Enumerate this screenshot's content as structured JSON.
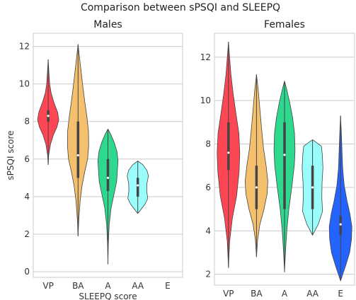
{
  "figure_title": "Comparison between sPSQI and SLEEPQ",
  "chart_data": [
    {
      "type": "violin",
      "title": "Males",
      "xlabel": "SLEEPQ score",
      "ylabel": "sPSQI score",
      "categories": [
        "VP",
        "BA",
        "A",
        "AA",
        "E"
      ],
      "yticks": [
        0,
        2,
        4,
        6,
        8,
        10,
        12
      ],
      "ylim": [
        -0.3,
        12.7
      ],
      "grid": true,
      "colors": [
        "#ff4655",
        "#f5c06d",
        "#2ed98f",
        "#9bfcfc",
        "#2563ff"
      ],
      "violins": [
        {
          "category": "VP",
          "min": 5.7,
          "max": 11.3,
          "q1": 8,
          "median": 8.3,
          "q3": 8.6,
          "profile": [
            [
              5.7,
              0
            ],
            [
              6.2,
              0.05
            ],
            [
              6.8,
              0.22
            ],
            [
              7.3,
              0.5
            ],
            [
              7.7,
              0.82
            ],
            [
              8.1,
              1
            ],
            [
              8.5,
              0.88
            ],
            [
              9,
              0.55
            ],
            [
              9.5,
              0.28
            ],
            [
              10,
              0.14
            ],
            [
              10.6,
              0.07
            ],
            [
              11.3,
              0
            ]
          ]
        },
        {
          "category": "BA",
          "min": 1.9,
          "max": 12.1,
          "q1": 5,
          "median": 6.2,
          "q3": 8,
          "profile": [
            [
              1.9,
              0
            ],
            [
              2.8,
              0.07
            ],
            [
              3.8,
              0.2
            ],
            [
              4.6,
              0.38
            ],
            [
              5.3,
              0.62
            ],
            [
              6,
              0.9
            ],
            [
              6.7,
              1
            ],
            [
              7.5,
              0.98
            ],
            [
              8.3,
              0.82
            ],
            [
              9.1,
              0.62
            ],
            [
              10,
              0.42
            ],
            [
              10.9,
              0.24
            ],
            [
              11.6,
              0.1
            ],
            [
              12.1,
              0
            ]
          ]
        },
        {
          "category": "A",
          "min": 0.4,
          "max": 7.6,
          "q1": 4.3,
          "median": 5,
          "q3": 6,
          "profile": [
            [
              0.4,
              0
            ],
            [
              1.5,
              0.04
            ],
            [
              2.5,
              0.12
            ],
            [
              3.4,
              0.3
            ],
            [
              4.2,
              0.6
            ],
            [
              4.8,
              0.82
            ],
            [
              5.3,
              0.88
            ],
            [
              5.9,
              0.95
            ],
            [
              6.4,
              0.85
            ],
            [
              6.9,
              0.58
            ],
            [
              7.3,
              0.28
            ],
            [
              7.6,
              0
            ]
          ]
        },
        {
          "category": "AA",
          "min": 3.1,
          "max": 5.9,
          "q1": 4,
          "median": 4.6,
          "q3": 5,
          "profile": [
            [
              3.1,
              0
            ],
            [
              3.3,
              0.28
            ],
            [
              3.6,
              0.68
            ],
            [
              3.9,
              0.94
            ],
            [
              4.3,
              0.84
            ],
            [
              4.7,
              0.86
            ],
            [
              5.1,
              1
            ],
            [
              5.4,
              0.86
            ],
            [
              5.7,
              0.48
            ],
            [
              5.9,
              0
            ]
          ]
        }
      ]
    },
    {
      "type": "violin",
      "title": "Females",
      "xlabel": "",
      "ylabel": "",
      "categories": [
        "VP",
        "BA",
        "A",
        "AA",
        "E"
      ],
      "yticks": [
        2,
        4,
        6,
        8,
        10,
        12
      ],
      "ylim": [
        1.5,
        13.1
      ],
      "grid": true,
      "colors": [
        "#ff4655",
        "#f5c06d",
        "#2ed98f",
        "#9bfcfc",
        "#2563ff"
      ],
      "violins": [
        {
          "category": "VP",
          "min": 2.3,
          "max": 12.7,
          "q1": 6.8,
          "median": 7.6,
          "q3": 9,
          "profile": [
            [
              2.3,
              0
            ],
            [
              3.5,
              0.1
            ],
            [
              4.6,
              0.35
            ],
            [
              5.6,
              0.72
            ],
            [
              6.7,
              0.94
            ],
            [
              7.6,
              1
            ],
            [
              8.5,
              0.92
            ],
            [
              9.4,
              0.66
            ],
            [
              10.3,
              0.42
            ],
            [
              11.2,
              0.22
            ],
            [
              12,
              0.1
            ],
            [
              12.7,
              0
            ]
          ]
        },
        {
          "category": "BA",
          "min": 2.8,
          "max": 11.2,
          "q1": 5,
          "median": 6,
          "q3": 7,
          "profile": [
            [
              2.8,
              0
            ],
            [
              3.6,
              0.1
            ],
            [
              4.3,
              0.3
            ],
            [
              5,
              0.66
            ],
            [
              5.7,
              0.94
            ],
            [
              6.3,
              1
            ],
            [
              7,
              0.85
            ],
            [
              7.8,
              0.62
            ],
            [
              8.7,
              0.45
            ],
            [
              9.6,
              0.3
            ],
            [
              10.5,
              0.15
            ],
            [
              11.2,
              0
            ]
          ]
        },
        {
          "category": "A",
          "min": 2.1,
          "max": 10.9,
          "q1": 5,
          "median": 7.5,
          "q3": 9,
          "profile": [
            [
              2.1,
              0
            ],
            [
              3,
              0.08
            ],
            [
              4,
              0.2
            ],
            [
              5,
              0.38
            ],
            [
              6,
              0.64
            ],
            [
              7,
              0.86
            ],
            [
              7.7,
              0.93
            ],
            [
              8.5,
              0.88
            ],
            [
              9.2,
              0.72
            ],
            [
              9.9,
              0.46
            ],
            [
              10.5,
              0.2
            ],
            [
              10.9,
              0
            ]
          ]
        },
        {
          "category": "AA",
          "min": 3.8,
          "max": 8.2,
          "q1": 5,
          "median": 6,
          "q3": 7,
          "profile": [
            [
              3.8,
              0
            ],
            [
              4.3,
              0.5
            ],
            [
              4.9,
              0.88
            ],
            [
              5.5,
              0.82
            ],
            [
              6.2,
              0.84
            ],
            [
              6.9,
              0.92
            ],
            [
              7.5,
              0.86
            ],
            [
              7.9,
              0.78
            ],
            [
              8.2,
              0
            ]
          ]
        },
        {
          "category": "E",
          "min": 1.7,
          "max": 9.3,
          "q1": 3.8,
          "median": 4.3,
          "q3": 4.7,
          "profile": [
            [
              1.7,
              0
            ],
            [
              2.4,
              0.45
            ],
            [
              3,
              0.8
            ],
            [
              3.6,
              0.96
            ],
            [
              4.2,
              1
            ],
            [
              4.8,
              0.82
            ],
            [
              5.4,
              0.56
            ],
            [
              6.1,
              0.32
            ],
            [
              6.9,
              0.18
            ],
            [
              7.8,
              0.12
            ],
            [
              8.6,
              0.06
            ],
            [
              9.3,
              0
            ]
          ]
        }
      ]
    }
  ]
}
